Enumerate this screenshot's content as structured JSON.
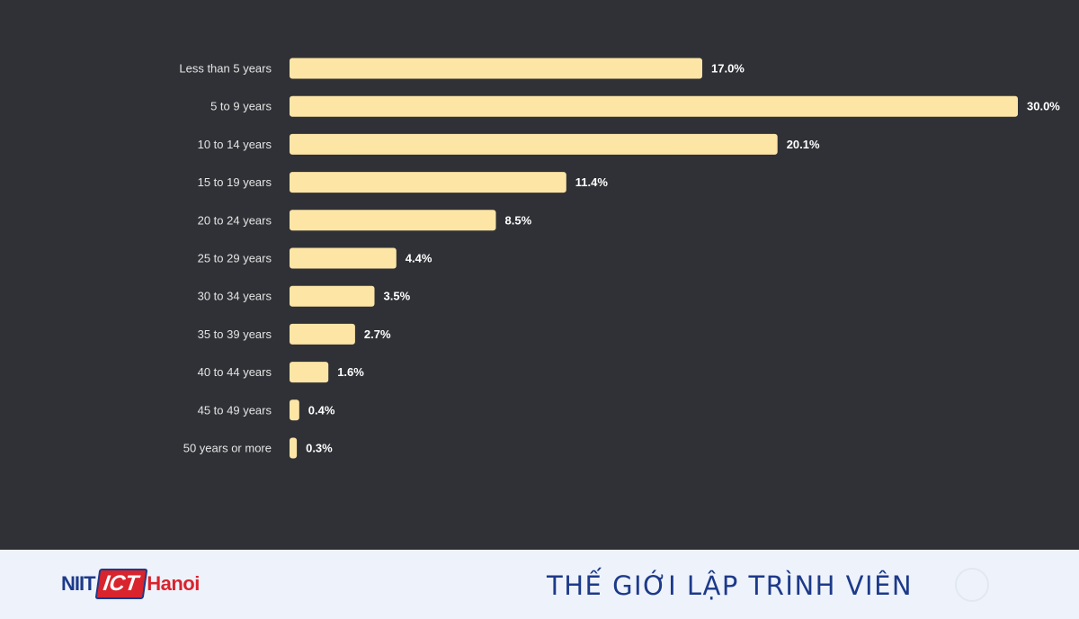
{
  "chart_data": {
    "type": "bar",
    "orientation": "horizontal",
    "categories": [
      "Less than 5 years",
      "5 to 9 years",
      "10 to 14 years",
      "15 to 19 years",
      "20 to 24 years",
      "25 to 29 years",
      "30 to 34 years",
      "35 to 39 years",
      "40 to 44 years",
      "45 to 49 years",
      "50 years or more"
    ],
    "values": [
      17.0,
      30.0,
      20.1,
      11.4,
      8.5,
      4.4,
      3.5,
      2.7,
      1.6,
      0.4,
      0.3
    ],
    "value_labels": [
      "17.0%",
      "30.0%",
      "20.1%",
      "11.4%",
      "8.5%",
      "4.4%",
      "3.5%",
      "2.7%",
      "1.6%",
      "0.4%",
      "0.3%"
    ],
    "xlim": [
      0,
      30
    ],
    "grid": false,
    "bar_color": "#fde5a6",
    "background_color": "#2f3136"
  },
  "footer": {
    "logo": {
      "part1": "NIIT",
      "part2": "ICT",
      "part3": "Hanoi"
    },
    "title": "THẾ GIỚI LẬP TRÌNH VIÊN"
  }
}
